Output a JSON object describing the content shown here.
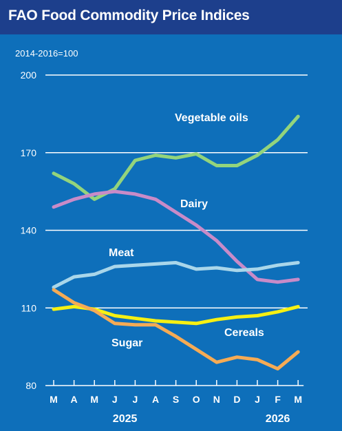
{
  "chart_data": {
    "type": "line",
    "title": "FAO Food Commodity Price Indices",
    "unit_note": "2014-2016=100",
    "xlabel": "",
    "ylabel": "",
    "ylim": [
      80,
      200
    ],
    "yticks": [
      80,
      110,
      140,
      170,
      200
    ],
    "grid": true,
    "legend": "direct-labels",
    "categories": [
      "M",
      "A",
      "M",
      "J",
      "J",
      "A",
      "S",
      "O",
      "N",
      "D",
      "J",
      "F",
      "M"
    ],
    "year_labels": [
      {
        "label": "2025",
        "index": 3.5
      },
      {
        "label": "2026",
        "index": 11
      }
    ],
    "series": [
      {
        "name": "Vegetable oils",
        "color": "#93d47c",
        "values": [
          162,
          158,
          152,
          156,
          167,
          169,
          168,
          169.5,
          165,
          165,
          169,
          175,
          184
        ]
      },
      {
        "name": "Dairy",
        "color": "#c88bc8",
        "values": [
          149,
          152,
          154,
          155,
          154,
          152,
          147,
          142,
          136,
          128,
          121,
          120,
          121
        ]
      },
      {
        "name": "Meat",
        "color": "#a9d6ea",
        "values": [
          118,
          122,
          123,
          126,
          126.5,
          127,
          127.5,
          125,
          125.5,
          124.5,
          125,
          126.5,
          127.5
        ]
      },
      {
        "name": "Cereals",
        "color": "#f6f013",
        "values": [
          109.5,
          110.5,
          109.5,
          107,
          106,
          105,
          104.5,
          104,
          105.5,
          106.5,
          107,
          108.5,
          110.5
        ]
      },
      {
        "name": "Sugar",
        "color": "#f5ab55",
        "values": [
          117,
          112,
          109,
          104,
          103.5,
          103.5,
          99,
          94,
          89,
          91,
          90,
          86.5,
          93
        ]
      }
    ]
  }
}
